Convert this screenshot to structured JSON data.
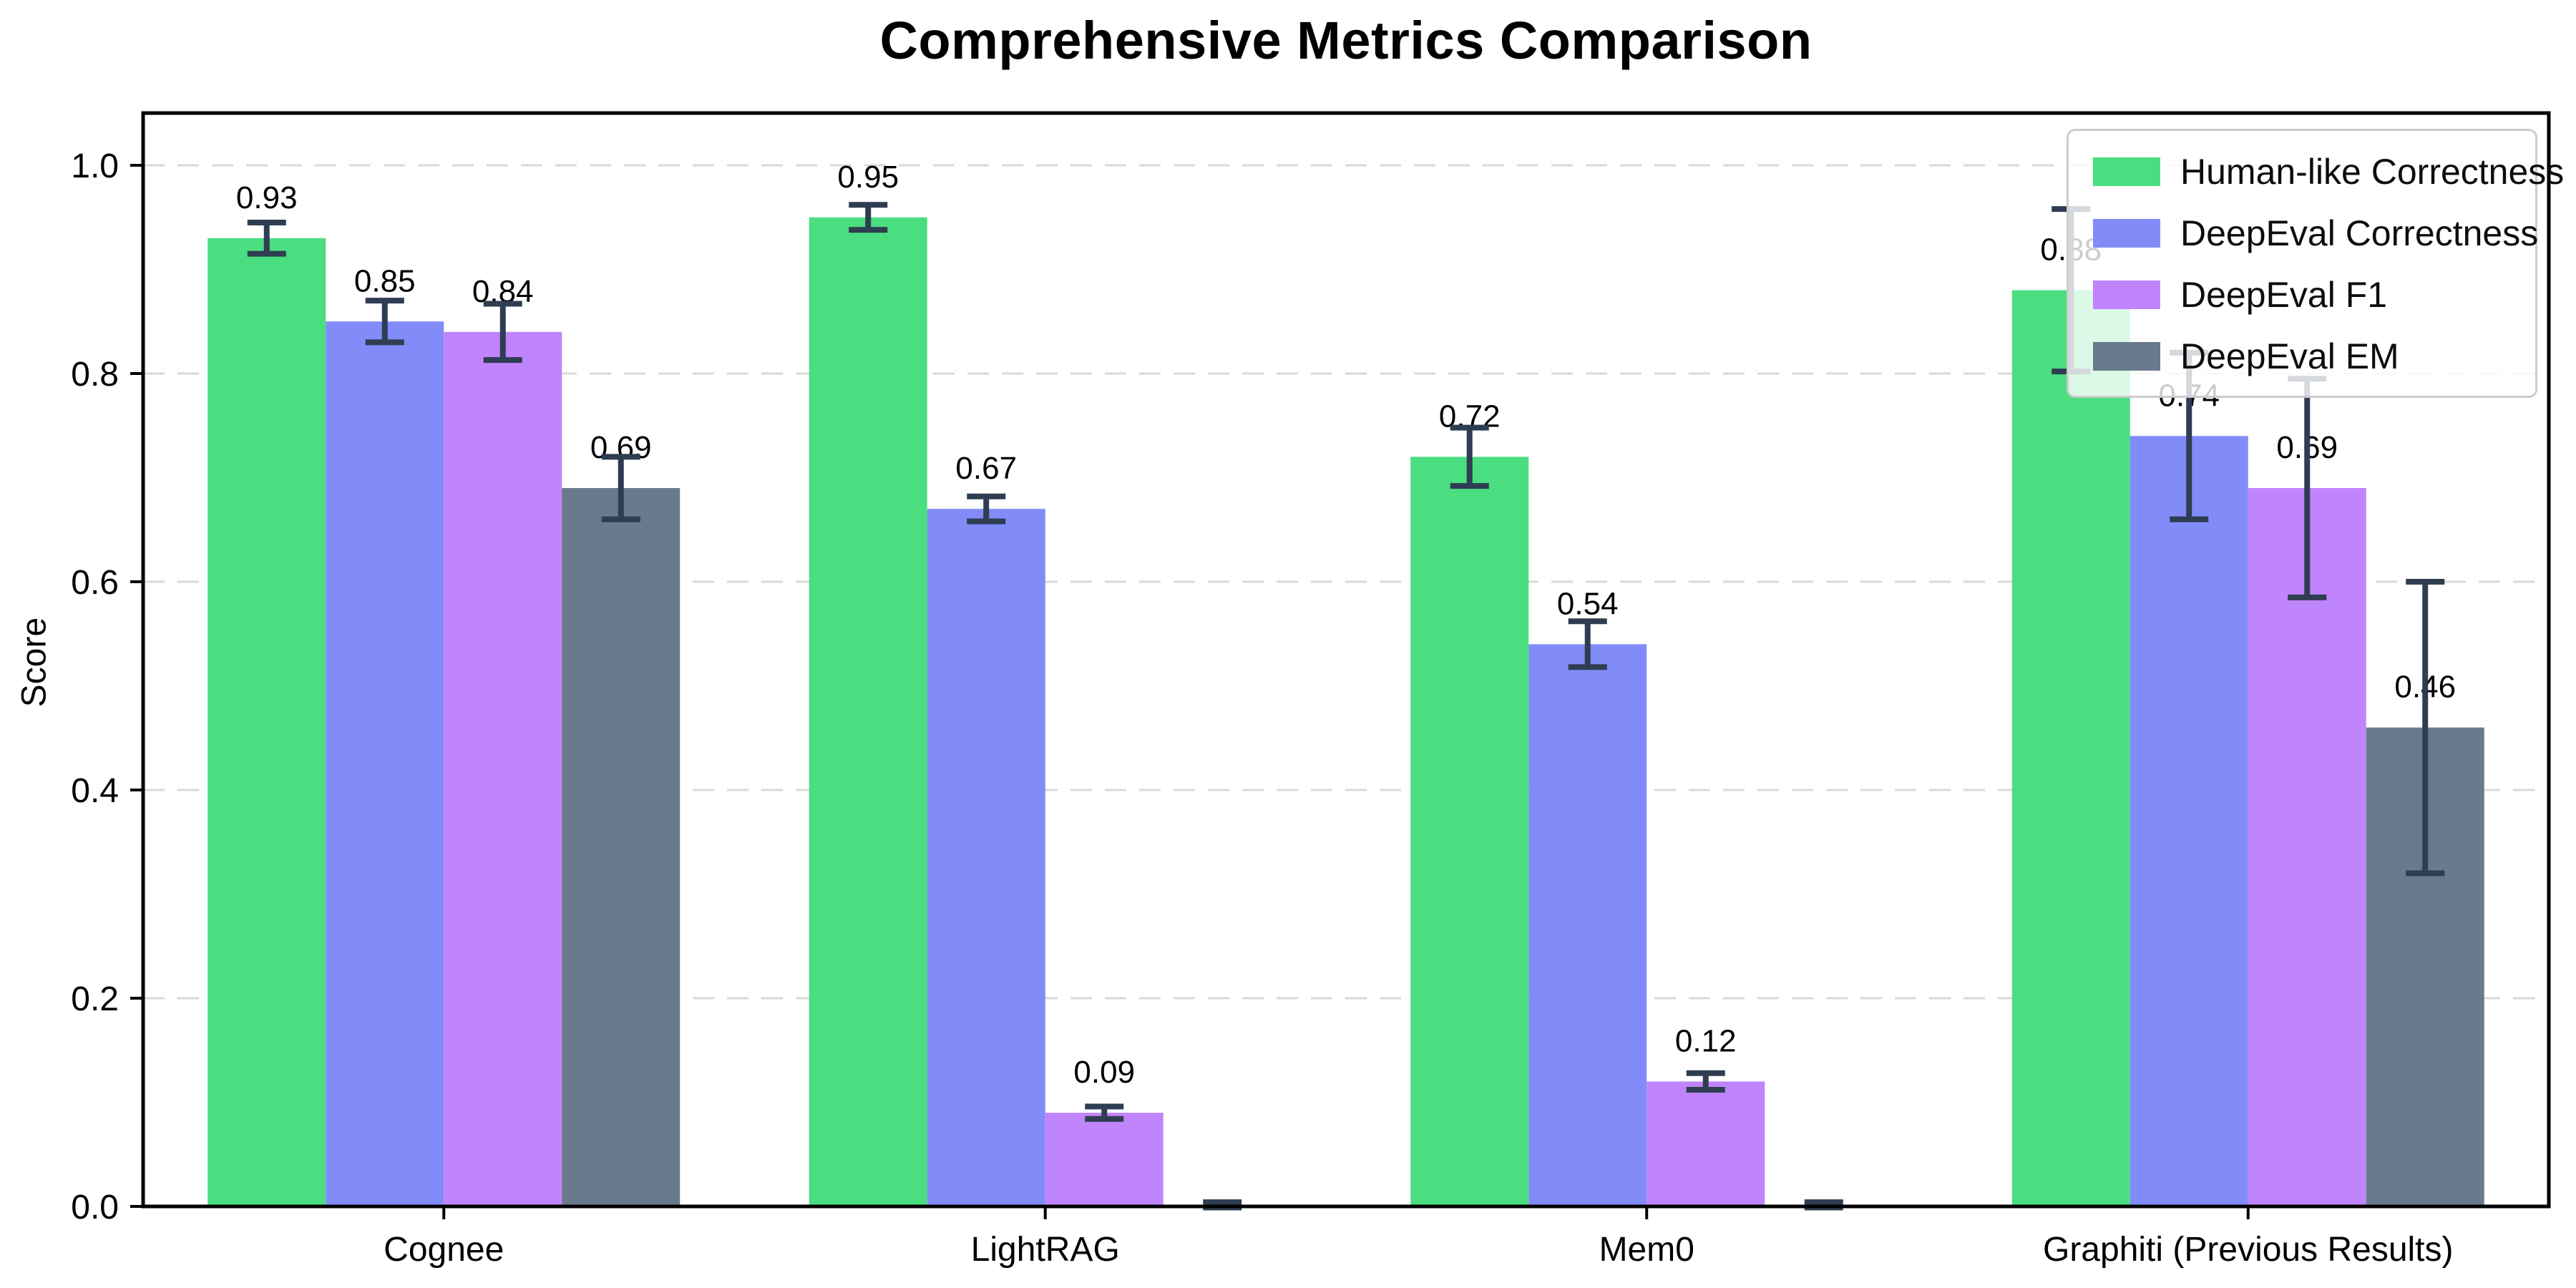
{
  "chart_data": {
    "type": "bar",
    "title": "Comprehensive Metrics Comparison",
    "ylabel": "Score",
    "xlabel": "",
    "categories": [
      "Cognee",
      "LightRAG",
      "Mem0",
      "Graphiti (Previous Results)"
    ],
    "series": [
      {
        "name": "Human-like Correctness",
        "color": "#4ade80",
        "values": [
          0.93,
          0.95,
          0.72,
          0.88
        ],
        "errors": [
          0.015,
          0.012,
          0.028,
          0.078
        ],
        "labels": [
          "0.93",
          "0.95",
          "0.72",
          "0.88"
        ]
      },
      {
        "name": "DeepEval Correctness",
        "color": "#818cf8",
        "values": [
          0.85,
          0.67,
          0.54,
          0.74
        ],
        "errors": [
          0.02,
          0.012,
          0.022,
          0.08
        ],
        "labels": [
          "0.85",
          "0.67",
          "0.54",
          "0.74"
        ]
      },
      {
        "name": "DeepEval F1",
        "color": "#c084fc",
        "values": [
          0.84,
          0.09,
          0.12,
          0.69
        ],
        "errors": [
          0.027,
          0.006,
          0.008,
          0.105
        ],
        "labels": [
          "0.84",
          "0.09",
          "0.12",
          "0.69"
        ]
      },
      {
        "name": "DeepEval EM",
        "color": "#697a8c",
        "values": [
          0.69,
          0.0,
          0.0,
          0.46
        ],
        "errors": [
          0.03,
          0.004,
          0.004,
          0.14
        ],
        "labels": [
          "0.69",
          null,
          null,
          "0.46"
        ]
      }
    ],
    "yticks": [
      {
        "value": 0.0,
        "label": "0.0"
      },
      {
        "value": 0.2,
        "label": "0.2"
      },
      {
        "value": 0.4,
        "label": "0.4"
      },
      {
        "value": 0.6,
        "label": "0.6"
      },
      {
        "value": 0.8,
        "label": "0.8"
      },
      {
        "value": 1.0,
        "label": "1.0"
      }
    ],
    "ylim": [
      0,
      1.05
    ],
    "grid": "horizontal-dashed",
    "grid_color": "#d9d9d9",
    "error_color": "#2e3d51",
    "axis_color": "#000000",
    "background": "#ffffff",
    "legend_position": "upper right"
  }
}
